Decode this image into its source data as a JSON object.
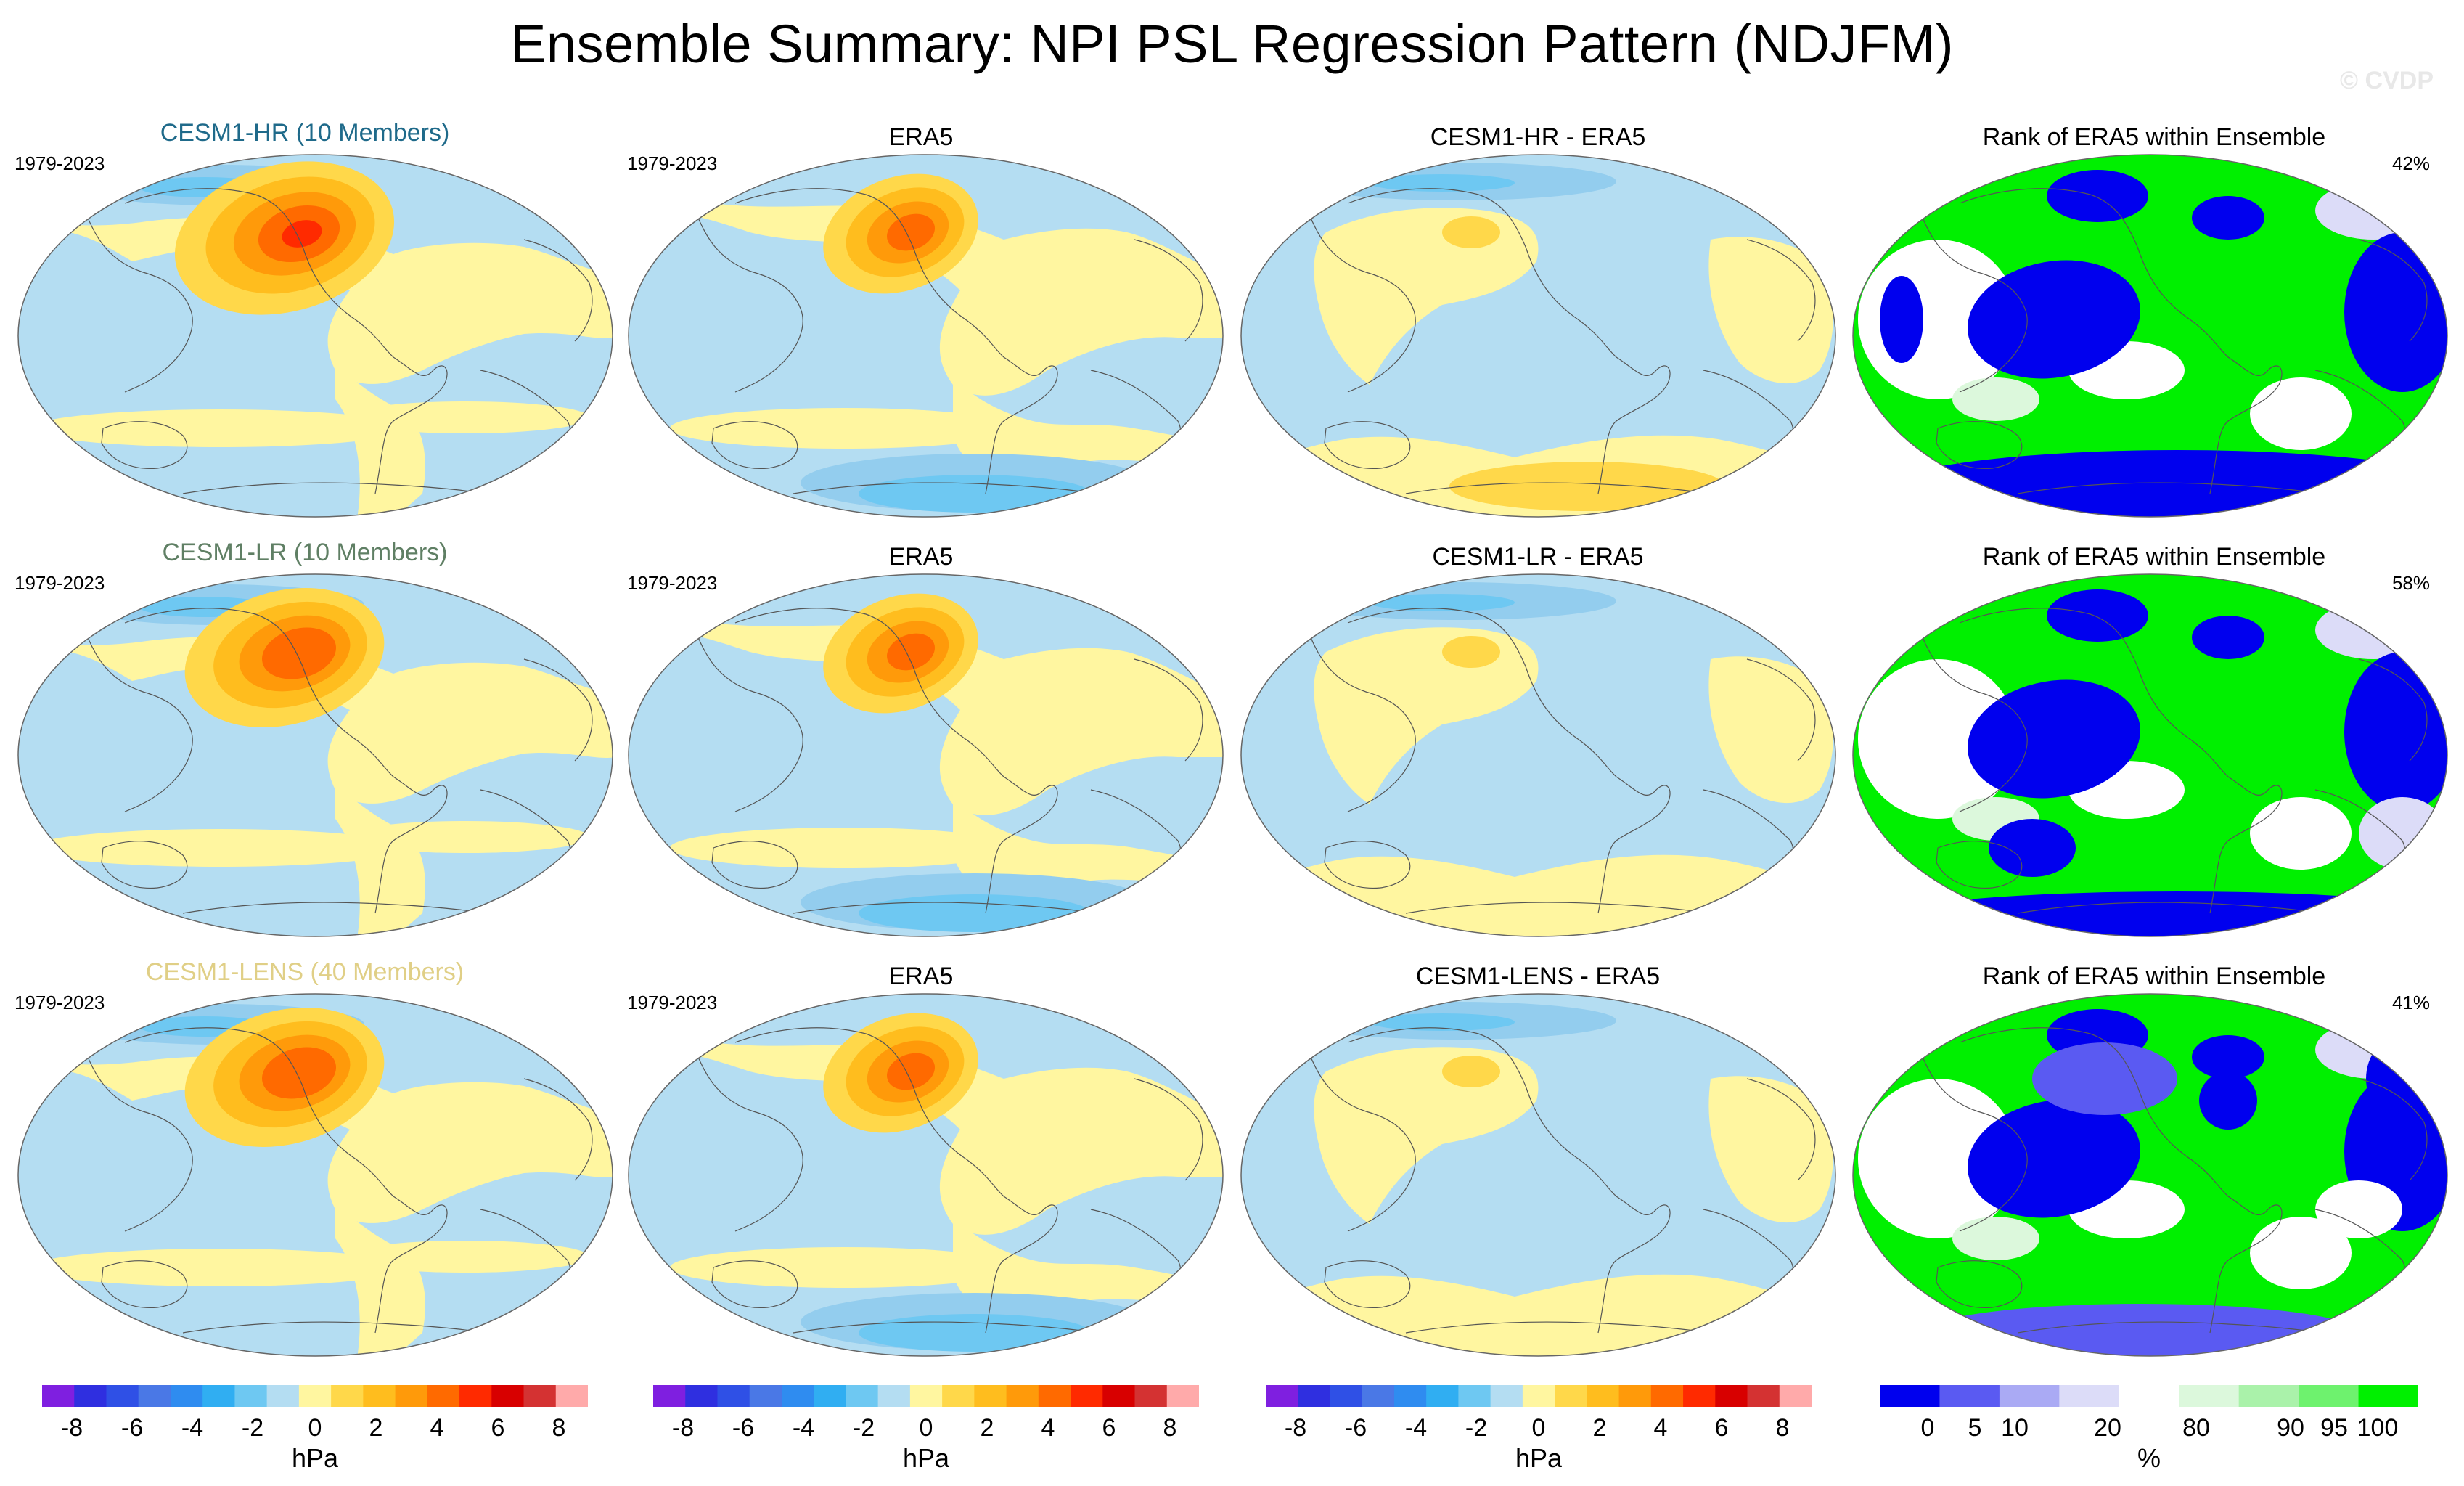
{
  "figure": {
    "title": "Ensemble Summary: NPI PSL Regression Pattern (NDJFM)",
    "watermark": "© CVDP"
  },
  "colors": {
    "hr_label": "#1f6a8a",
    "lr_label": "#5f7f64",
    "lens_label": "#e0cf86",
    "diverging": [
      "#7f1fe0",
      "#2f2fe0",
      "#2f50e6",
      "#4a78e6",
      "#2f8cf0",
      "#30aef2",
      "#6ec8f2",
      "#b4ddf2",
      "#fff6a0",
      "#ffd84a",
      "#ffbd1e",
      "#ff9a0a",
      "#ff6a00",
      "#ff2a00",
      "#d80000",
      "#d43232",
      "#ffaaaa"
    ],
    "rank": [
      "#0000ee",
      "#5a5af2",
      "#aaaaf4",
      "#dcdcf8",
      "#ffffff",
      "#dcf8dc",
      "#aaf2aa",
      "#6ef26e",
      "#00f000"
    ]
  },
  "chart_data": [
    {
      "type": "map",
      "title": "CESM1-HR (10 Members)",
      "period": "1979-2023",
      "row": 1,
      "col": 1,
      "variant": "model"
    },
    {
      "type": "map",
      "title": "ERA5",
      "period": "1979-2023",
      "row": 1,
      "col": 2,
      "variant": "obs"
    },
    {
      "type": "map",
      "title": "CESM1-HR - ERA5",
      "row": 1,
      "col": 3,
      "variant": "diff"
    },
    {
      "type": "map",
      "title": "Rank of ERA5 within Ensemble",
      "percent": "42%",
      "row": 1,
      "col": 4,
      "variant": "rank"
    },
    {
      "type": "map",
      "title": "CESM1-LR (10 Members)",
      "period": "1979-2023",
      "row": 2,
      "col": 1,
      "variant": "model"
    },
    {
      "type": "map",
      "title": "ERA5",
      "period": "1979-2023",
      "row": 2,
      "col": 2,
      "variant": "obs"
    },
    {
      "type": "map",
      "title": "CESM1-LR - ERA5",
      "row": 2,
      "col": 3,
      "variant": "diff"
    },
    {
      "type": "map",
      "title": "Rank of ERA5 within Ensemble",
      "percent": "58%",
      "row": 2,
      "col": 4,
      "variant": "rank"
    },
    {
      "type": "map",
      "title": "CESM1-LENS (40 Members)",
      "period": "1979-2023",
      "row": 3,
      "col": 1,
      "variant": "model"
    },
    {
      "type": "map",
      "title": "ERA5",
      "period": "1979-2023",
      "row": 3,
      "col": 2,
      "variant": "obs"
    },
    {
      "type": "map",
      "title": "CESM1-LENS - ERA5",
      "row": 3,
      "col": 3,
      "variant": "diff"
    },
    {
      "type": "map",
      "title": "Rank of ERA5 within Ensemble",
      "percent": "41%",
      "row": 3,
      "col": 4,
      "variant": "rank"
    }
  ],
  "colorbars": [
    {
      "unit": "hPa",
      "ticks": [
        "-8",
        "-6",
        "-4",
        "-2",
        "0",
        "2",
        "4",
        "6",
        "8"
      ],
      "levels": [
        -8,
        -6,
        -4,
        -2,
        0,
        2,
        4,
        6,
        8
      ]
    },
    {
      "unit": "hPa",
      "ticks": [
        "-8",
        "-6",
        "-4",
        "-2",
        "0",
        "2",
        "4",
        "6",
        "8"
      ],
      "levels": [
        -8,
        -6,
        -4,
        -2,
        0,
        2,
        4,
        6,
        8
      ]
    },
    {
      "unit": "hPa",
      "ticks": [
        "-8",
        "-6",
        "-4",
        "-2",
        "0",
        "2",
        "4",
        "6",
        "8"
      ],
      "levels": [
        -8,
        -6,
        -4,
        -2,
        0,
        2,
        4,
        6,
        8
      ]
    },
    {
      "unit": "%",
      "ticks": [
        "0",
        "5",
        "10",
        "20",
        "80",
        "90",
        "95",
        "100"
      ],
      "levels": [
        0,
        5,
        10,
        20,
        80,
        90,
        95,
        100
      ]
    }
  ]
}
